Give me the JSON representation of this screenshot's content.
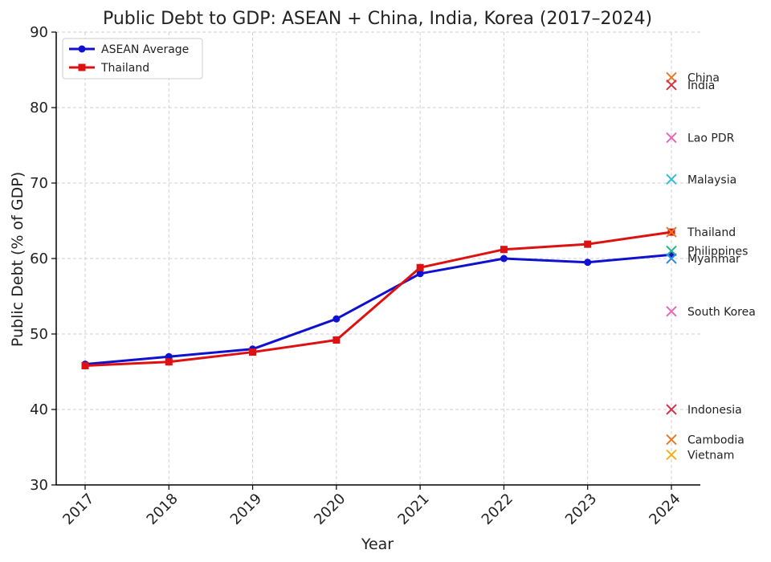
{
  "chart_data": {
    "type": "line",
    "title": "Public Debt to GDP: ASEAN + China, India, Korea (2017–2024)",
    "xlabel": "Year",
    "ylabel": "Public Debt (% of GDP)",
    "x": [
      2017,
      2018,
      2019,
      2020,
      2021,
      2022,
      2023,
      2024
    ],
    "ylim": [
      30,
      90
    ],
    "yticks": [
      30,
      40,
      50,
      60,
      70,
      80,
      90
    ],
    "grid": true,
    "legend_position": "top-left",
    "series": [
      {
        "name": "ASEAN Average",
        "color": "#1010d0",
        "marker": "circle",
        "values": [
          46.0,
          47.0,
          48.0,
          52.0,
          58.0,
          60.0,
          59.5,
          60.5
        ]
      },
      {
        "name": "Thailand",
        "color": "#dd1111",
        "marker": "square",
        "values": [
          45.8,
          46.3,
          47.6,
          49.2,
          58.8,
          61.2,
          61.9,
          63.5
        ]
      }
    ],
    "annotations_2024": [
      {
        "label": "China",
        "value": 84.0,
        "color": "#e07b2a"
      },
      {
        "label": "India",
        "value": 83.0,
        "color": "#d6334a"
      },
      {
        "label": "Lao PDR",
        "value": 76.0,
        "color": "#e26bb8"
      },
      {
        "label": "Malaysia",
        "value": 70.5,
        "color": "#33bcd6"
      },
      {
        "label": "Thailand",
        "value": 63.5,
        "color": "#e07b2a"
      },
      {
        "label": "Philippines",
        "value": 61.0,
        "color": "#22b38a"
      },
      {
        "label": "Myanmar",
        "value": 60.0,
        "color": "#2f8fd6"
      },
      {
        "label": "South Korea",
        "value": 53.0,
        "color": "#e26bb8"
      },
      {
        "label": "Indonesia",
        "value": 40.0,
        "color": "#d6334a"
      },
      {
        "label": "Cambodia",
        "value": 36.0,
        "color": "#e07b2a"
      },
      {
        "label": "Vietnam",
        "value": 34.0,
        "color": "#f0b21a"
      }
    ]
  }
}
